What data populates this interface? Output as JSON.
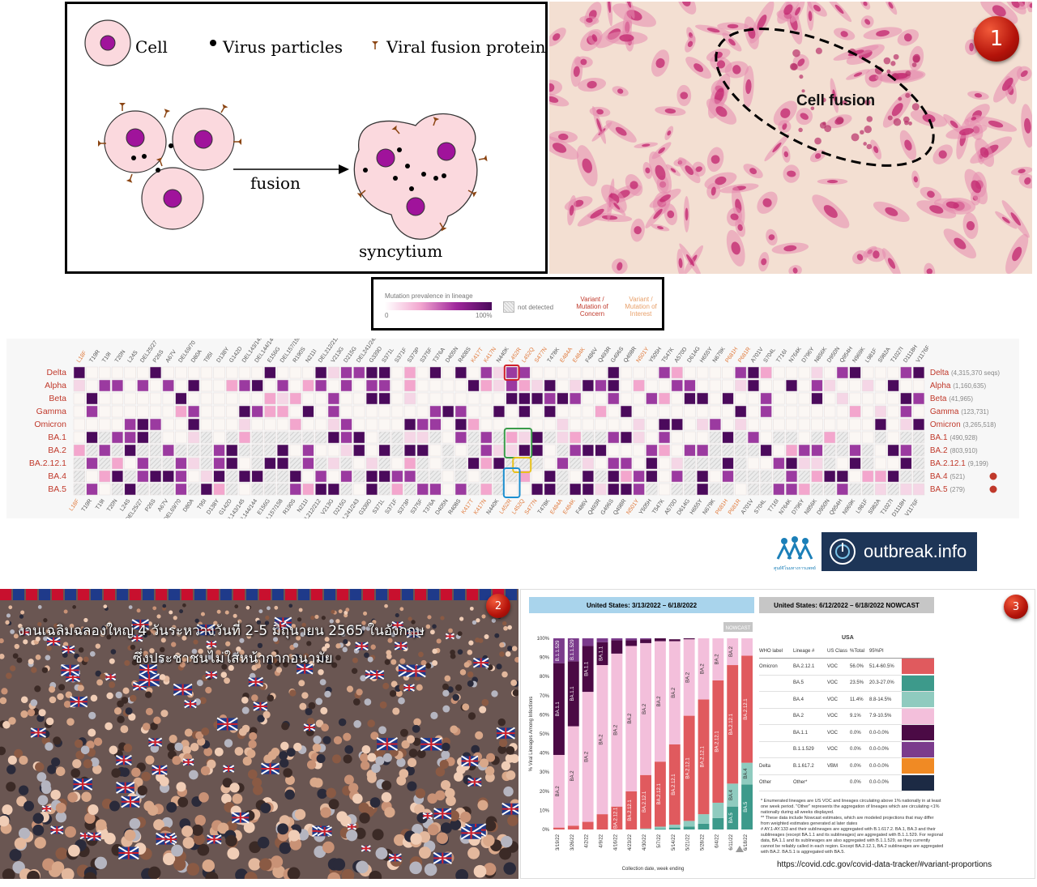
{
  "fusion_diagram": {
    "legend_cell": "Cell",
    "legend_virus": "Virus particles",
    "legend_protein": "Viral fusion protein",
    "arrow_label": "fusion",
    "result_label": "syncytium"
  },
  "micrograph": {
    "label": "Cell fusion",
    "badge": "1"
  },
  "legend": {
    "prevalence_label": "Mutation prevalence in lineage",
    "scale_min": "0",
    "scale_max": "100%",
    "not_detected": "not detected",
    "voc_line1": "Variant /",
    "voc_line2": "Mutation of",
    "voc_line3": "Concern",
    "voi_line1": "Variant /",
    "voi_line2": "Mutation of",
    "voi_line3": "Interest"
  },
  "heatmap": {
    "mutations": [
      "L18F",
      "T19R",
      "T19I",
      "T20N",
      "L24S",
      "DEL25/27",
      "P26S",
      "A67V",
      "DEL69/70",
      "D80A",
      "T95I",
      "D138Y",
      "G142D",
      "DEL143/145",
      "DEL144/144",
      "E156G",
      "DEL157/158",
      "R190S",
      "N211I",
      "DEL212/212",
      "V213G",
      "D215G",
      "DEL241/243",
      "G339D",
      "S371L",
      "S371F",
      "S373P",
      "S375F",
      "T376A",
      "D405N",
      "R408S",
      "K417T",
      "K417N",
      "N440K",
      "L452R",
      "L452Q",
      "S477N",
      "T478K",
      "E484A",
      "E484K",
      "F486V",
      "Q493R",
      "G496S",
      "Q498R",
      "N501Y",
      "Y505H",
      "T547K",
      "A570D",
      "D614G",
      "H655Y",
      "N679K",
      "P681H",
      "P681R",
      "A701V",
      "S704L",
      "T716I",
      "N764K",
      "D796Y",
      "N856K",
      "D950N",
      "Q954H",
      "N969K",
      "L981F",
      "S982A",
      "T1027I",
      "D1118H",
      "V1176F"
    ],
    "lineages": [
      {
        "name": "Delta",
        "seqs": "(4,315,370 seqs)"
      },
      {
        "name": "Alpha",
        "seqs": "(1,160,635)"
      },
      {
        "name": "Beta",
        "seqs": "(41,965)"
      },
      {
        "name": "Gamma",
        "seqs": "(123,731)"
      },
      {
        "name": "Omicron",
        "seqs": "(3,265,518)"
      },
      {
        "name": "BA.1",
        "seqs": "(490,928)"
      },
      {
        "name": "BA.2",
        "seqs": "(803,910)"
      },
      {
        "name": "BA.2.12.1",
        "seqs": "(9,199)"
      },
      {
        "name": "BA.4",
        "seqs": "(521)"
      },
      {
        "name": "BA.5",
        "seqs": "(279)"
      }
    ]
  },
  "logos": {
    "outbreak": "outbreak.info",
    "thai_center": "ศูนย์จีโนมทางการแพทย์"
  },
  "crowd": {
    "line1": "งานเฉลิมฉลองใหญ่ 4 วันระหว่างวันที่ 2-5 มิถุนายน 2565 ในอังกฤษ",
    "line2": "ซึ่งประชาชนไม่ใส่หน้ากากอนามัย",
    "badge": "2"
  },
  "cdc": {
    "badge": "3",
    "header_left": "United States: 3/13/2022 – 6/18/2022",
    "header_right": "United States: 6/12/2022 – 6/18/2022 NOWCAST",
    "nowcast": "NOWCAST",
    "y_axis_label": "% Viral Lineages Among Infections",
    "x_axis_label": "Collection date, week ending",
    "y_ticks": [
      "100%",
      "90%",
      "80%",
      "70%",
      "60%",
      "50%",
      "40%",
      "30%",
      "20%",
      "10%",
      "0%"
    ],
    "region": "USA",
    "table_headers": [
      "WHO label",
      "Lineage #",
      "US Class",
      "%Total",
      "95%PI"
    ],
    "rows": [
      {
        "who": "Omicron",
        "lineage": "BA.2.12.1",
        "cls": "VOC",
        "total": "56.0%",
        "pi": "51.4-60.5%",
        "color": "#e05a5e"
      },
      {
        "who": "",
        "lineage": "BA.5",
        "cls": "VOC",
        "total": "23.5%",
        "pi": "20.3-27.0%",
        "color": "#3d9a8b"
      },
      {
        "who": "",
        "lineage": "BA.4",
        "cls": "VOC",
        "total": "11.4%",
        "pi": "8.8-14.5%",
        "color": "#8fcbbf"
      },
      {
        "who": "",
        "lineage": "BA.2",
        "cls": "VOC",
        "total": "9.1%",
        "pi": "7.9-10.5%",
        "color": "#f3bfdb"
      },
      {
        "who": "",
        "lineage": "BA.1.1",
        "cls": "VOC",
        "total": "0.0%",
        "pi": "0.0-0.0%",
        "color": "#4b0a45"
      },
      {
        "who": "",
        "lineage": "B.1.1.529",
        "cls": "VOC",
        "total": "0.0%",
        "pi": "0.0-0.0%",
        "color": "#7b3b8c"
      },
      {
        "who": "Delta",
        "lineage": "B.1.617.2",
        "cls": "VBM",
        "total": "0.0%",
        "pi": "0.0-0.0%",
        "color": "#f08a24"
      },
      {
        "who": "Other",
        "lineage": "Other*",
        "cls": "",
        "total": "0.0%",
        "pi": "0.0-0.0%",
        "color": "#1c2a44"
      }
    ],
    "note1": "*    Enumerated lineages are US VOC and lineages circulating above 1% nationally in at least one week period. \"Other\" represents the aggregation of lineages which are circulating <1% nationally during all weeks displayed.",
    "note2": "**   These data include Nowcast estimates, which are modeled projections that may differ from weighted estimates generated at later dates",
    "note3": "#    AY.1-AY.133 and their sublineages are aggregated with B.1.617.2. BA.1, BA.3 and their sublineages (except BA.1.1 and its sublineages) are aggregated with B.1.1.529. For regional data, BA.1.1 and its sublineages are also aggregated with B.1.1.529, as they currently cannot be reliably called in each region. Except BA.2.12.1, BA.2 sublineages are aggregated with BA.2. BA.5.1 is aggregated with BA.5.",
    "url": "https://covid.cdc.gov/covid-data-tracker/#variant-proportions"
  },
  "chart_data": {
    "type": "bar",
    "categories": [
      "3/19/22",
      "3/26/22",
      "4/2/22",
      "4/9/22",
      "4/16/22",
      "4/23/22",
      "4/30/22",
      "5/7/22",
      "5/14/22",
      "5/21/22",
      "5/28/22",
      "6/4/22",
      "6/11/22",
      "6/18/22"
    ],
    "series": [
      {
        "name": "BA.5",
        "values": [
          0,
          0,
          0,
          0,
          0,
          0,
          0,
          0.5,
          1,
          1.5,
          3,
          6,
          12,
          23.5
        ]
      },
      {
        "name": "BA.4",
        "values": [
          0,
          0,
          0,
          0,
          0,
          0,
          0.5,
          1,
          1.5,
          3,
          5,
          8,
          12,
          11.4
        ]
      },
      {
        "name": "BA.2.12.1",
        "values": [
          1,
          2,
          4,
          8,
          12,
          20,
          28,
          34,
          42,
          55,
          60,
          64,
          62,
          56
        ]
      },
      {
        "name": "BA.2",
        "values": [
          38,
          52,
          68,
          78,
          80,
          76,
          69,
          63,
          54,
          40,
          32,
          22,
          14,
          9.1
        ]
      },
      {
        "name": "BA.1.1",
        "values": [
          48,
          34,
          24,
          12,
          7,
          3,
          2,
          1.5,
          1,
          0.5,
          0,
          0,
          0,
          0
        ]
      },
      {
        "name": "B.1.1.529",
        "values": [
          13,
          12,
          4,
          2,
          1,
          1,
          0.5,
          0,
          0,
          0,
          0,
          0,
          0,
          0
        ]
      }
    ],
    "ylabel": "% Viral Lineages Among Infections",
    "xlabel": "Collection date, week ending",
    "ylim": [
      0,
      100
    ]
  }
}
